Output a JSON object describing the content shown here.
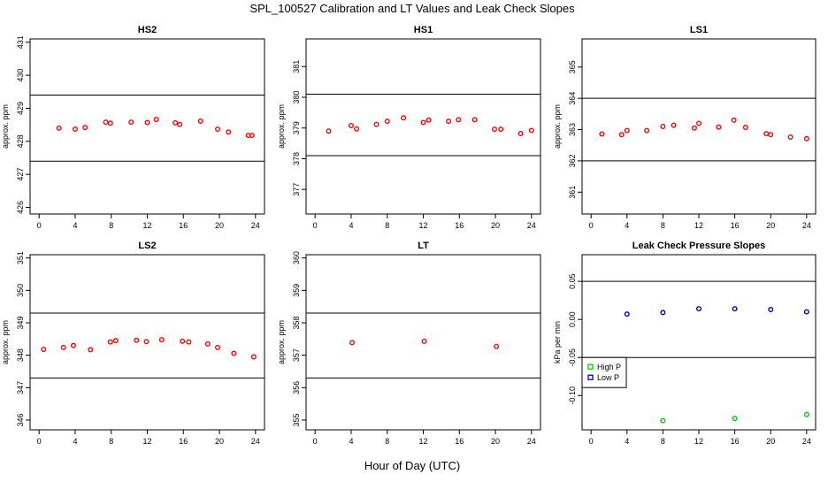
{
  "figure": {
    "title": "SPL_100527  Calibration and LT Values and Leak Check Slopes",
    "xlabel": "Hour of Day (UTC)"
  },
  "chart_data": [
    {
      "type": "scatter",
      "title": "HS2",
      "ylabel": "approx. ppm",
      "xlim": [
        -1,
        25
      ],
      "ylim": [
        425.8,
        431.1
      ],
      "xticks": [
        0,
        4,
        8,
        12,
        16,
        20,
        24
      ],
      "yticks": [
        426,
        427,
        428,
        429,
        430,
        431
      ],
      "hlines": [
        429.4,
        427.4
      ],
      "series": [
        {
          "color": "#ff0000",
          "marker": "circle",
          "x": [
            2.2,
            4,
            5.1,
            7.4,
            7.9,
            10.2,
            12,
            13,
            15.1,
            15.6,
            17.9,
            19.8,
            21,
            23.2,
            23.6
          ],
          "y": [
            428.4,
            428.37,
            428.42,
            428.58,
            428.55,
            428.58,
            428.57,
            428.66,
            428.56,
            428.51,
            428.61,
            428.37,
            428.28,
            428.18,
            428.18
          ]
        }
      ]
    },
    {
      "type": "scatter",
      "title": "HS1",
      "ylabel": "approx. ppm",
      "xlim": [
        -1,
        25
      ],
      "ylim": [
        376.2,
        381.9
      ],
      "xticks": [
        0,
        4,
        8,
        12,
        16,
        20,
        24
      ],
      "yticks": [
        377,
        378,
        379,
        380,
        381
      ],
      "hlines": [
        380.1,
        378.1
      ],
      "series": [
        {
          "color": "#ff0000",
          "marker": "circle",
          "x": [
            1.5,
            4,
            4.6,
            6.8,
            8,
            9.8,
            12,
            12.6,
            14.8,
            15.9,
            17.7,
            19.9,
            20.6,
            22.8,
            24
          ],
          "y": [
            378.9,
            379.08,
            378.97,
            379.12,
            379.22,
            379.33,
            379.18,
            379.26,
            379.22,
            379.27,
            379.27,
            378.96,
            378.96,
            378.82,
            378.92
          ]
        }
      ]
    },
    {
      "type": "scatter",
      "title": "LS1",
      "ylabel": "approx. ppm",
      "xlim": [
        -1,
        25
      ],
      "ylim": [
        360.3,
        365.9
      ],
      "xticks": [
        0,
        4,
        8,
        12,
        16,
        20,
        24
      ],
      "yticks": [
        361,
        362,
        363,
        364,
        365
      ],
      "hlines": [
        364,
        362
      ],
      "series": [
        {
          "color": "#ff0000",
          "marker": "circle",
          "x": [
            1.2,
            3.4,
            4,
            6.2,
            8,
            9.2,
            11.5,
            12,
            14.2,
            15.9,
            17.2,
            19.5,
            20,
            22.2,
            24
          ],
          "y": [
            362.86,
            362.84,
            362.97,
            362.97,
            363.1,
            363.14,
            363.05,
            363.2,
            363.08,
            363.3,
            363.07,
            362.87,
            362.84,
            362.76,
            362.71
          ]
        }
      ]
    },
    {
      "type": "scatter",
      "title": "LS2",
      "ylabel": "approx. ppm",
      "xlim": [
        -1,
        25
      ],
      "ylim": [
        345.7,
        351.1
      ],
      "xticks": [
        0,
        4,
        8,
        12,
        16,
        20,
        24
      ],
      "yticks": [
        346,
        347,
        348,
        349,
        350,
        351
      ],
      "hlines": [
        349.3,
        347.3
      ],
      "series": [
        {
          "color": "#ff0000",
          "marker": "circle",
          "x": [
            0.5,
            2.7,
            3.8,
            5.7,
            7.9,
            8.5,
            10.8,
            11.9,
            13.6,
            15.9,
            16.6,
            18.7,
            19.8,
            21.6,
            23.8
          ],
          "y": [
            348.18,
            348.24,
            348.3,
            348.17,
            348.41,
            348.45,
            348.46,
            348.42,
            348.48,
            348.43,
            348.41,
            348.35,
            348.24,
            348.06,
            347.95
          ]
        }
      ]
    },
    {
      "type": "scatter",
      "title": "LT",
      "ylabel": "approx. ppm",
      "xlim": [
        -1,
        25
      ],
      "ylim": [
        354.7,
        360.1
      ],
      "xticks": [
        0,
        4,
        8,
        12,
        16,
        20,
        24
      ],
      "yticks": [
        355,
        356,
        357,
        358,
        359,
        360
      ],
      "hlines": [
        358.3,
        356.3
      ],
      "series": [
        {
          "color": "#ff0000",
          "marker": "circle",
          "x": [
            4.1,
            12.1,
            20.1
          ],
          "y": [
            357.39,
            357.43,
            357.27
          ]
        }
      ]
    },
    {
      "type": "scatter",
      "title": "Leak Check Pressure Slopes",
      "ylabel": "kPa per min",
      "xlim": [
        -1,
        25
      ],
      "ylim": [
        -0.145,
        0.085
      ],
      "xticks": [
        0,
        4,
        8,
        12,
        16,
        20,
        24
      ],
      "yticks": [
        -0.1,
        -0.05,
        0,
        0.05
      ],
      "ytick_labels": [
        "-0.10",
        "-0.05",
        "0.00",
        "0.05"
      ],
      "hlines": [
        0.05,
        -0.05
      ],
      "legend": {
        "placement": "left",
        "entries": [
          "High P",
          "Low P"
        ]
      },
      "series": [
        {
          "name": "High P",
          "color": "#00cc00",
          "marker": "circle",
          "x": [
            8,
            16,
            24
          ],
          "y": [
            -0.133,
            -0.13,
            -0.125
          ]
        },
        {
          "name": "Low P",
          "color": "#0000cc",
          "marker": "circle",
          "x": [
            4,
            8,
            12,
            16,
            20,
            24
          ],
          "y": [
            0.007,
            0.009,
            0.014,
            0.014,
            0.013,
            0.01
          ]
        }
      ]
    }
  ]
}
